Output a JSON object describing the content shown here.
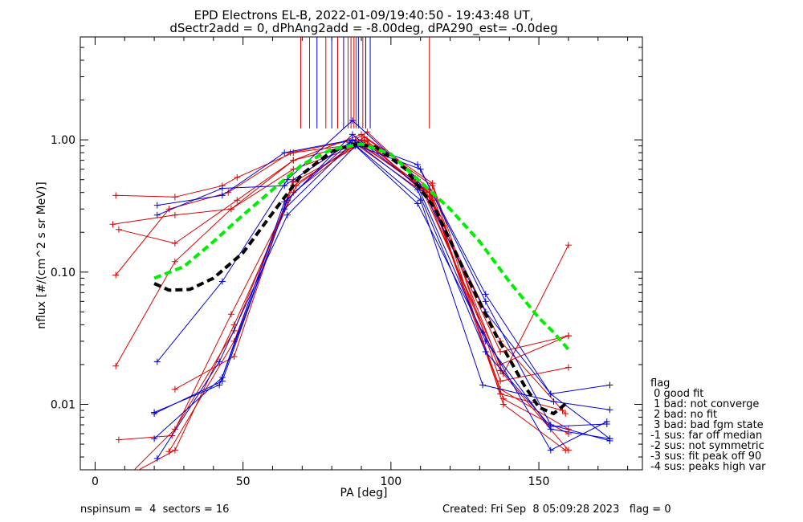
{
  "title_line1": "EPD Electrons EL-B, 2022-01-09/19:40:50 - 19:43:48 UT,",
  "title_line2": "dSectr2add = 0, dPhAng2add = -8.00deg, dPA290_est=  -0.0deg",
  "footer": {
    "left": "nspinsum =  4  sectors = 16",
    "right": "Created: Fri Sep  8 05:09:28 2023   flag = 0"
  },
  "legend": {
    "title": "flag",
    "entries": [
      " 0 good fit",
      " 1 bad: not converge",
      " 2 bad: no fit",
      " 3 bad: bad fgm state",
      "-1 sus: far off median",
      "-2 sus: not symmetric",
      "-3 sus: fit peak off 90",
      "-4 sus: peaks high var"
    ]
  },
  "colors": {
    "red": "#dd0000",
    "blue": "#0000dd",
    "green": "#00ee00",
    "black": "#000000"
  },
  "chart_data": {
    "type": "line",
    "title": "EPD Electrons EL-B, 2022-01-09/19:40:50 - 19:43:48 UT,",
    "xlabel": "PA [deg]",
    "ylabel": "nflux [#/(cm^2 s sr MeV)]",
    "xlim": [
      -5,
      185
    ],
    "ylim": [
      0.0032,
      6.0
    ],
    "yscale": "log",
    "x_ticks": [
      0,
      50,
      100,
      150
    ],
    "y_ticks": [
      {
        "value": 0.01,
        "label": "0.01"
      },
      {
        "value": 0.1,
        "label": "0.10"
      },
      {
        "value": 1.0,
        "label": "1.00"
      }
    ],
    "grid": false,
    "series": [
      {
        "color": "red",
        "x": [
          7,
          27,
          43,
          48,
          67,
          89,
          111,
          137,
          160
        ],
        "y": [
          0.38,
          0.37,
          0.45,
          0.52,
          0.8,
          0.93,
          0.45,
          0.025,
          0.033
        ]
      },
      {
        "color": "red",
        "x": [
          6,
          27,
          46,
          67,
          89,
          111,
          137,
          160
        ],
        "y": [
          0.23,
          0.27,
          0.3,
          0.6,
          0.9,
          0.4,
          0.02,
          0.033
        ]
      },
      {
        "color": "red",
        "x": [
          8,
          27,
          48,
          67,
          89,
          111,
          137,
          160
        ],
        "y": [
          0.21,
          0.165,
          0.35,
          0.7,
          0.95,
          0.43,
          0.018,
          0.0045
        ]
      },
      {
        "color": "red",
        "x": [
          7,
          25,
          45,
          66,
          88,
          114,
          138,
          160
        ],
        "y": [
          0.095,
          0.3,
          0.4,
          0.8,
          1.0,
          0.38,
          0.017,
          0.16
        ]
      },
      {
        "color": "red",
        "x": [
          7,
          27,
          46,
          67,
          90,
          114,
          137,
          160
        ],
        "y": [
          0.0195,
          0.12,
          0.3,
          0.7,
          1.1,
          0.47,
          0.015,
          0.019
        ]
      },
      {
        "color": "red",
        "x": [
          8,
          26,
          46,
          67,
          90,
          113,
          137,
          158
        ],
        "y": [
          0.0054,
          0.0058,
          0.048,
          0.4,
          1.0,
          0.4,
          0.012,
          0.009
        ]
      },
      {
        "color": "red",
        "x": [
          10,
          27,
          47,
          68,
          91,
          114,
          138,
          159
        ],
        "y": [
          0.0028,
          0.0045,
          0.04,
          0.45,
          1.05,
          0.45,
          0.01,
          0.0045
        ]
      },
      {
        "color": "red",
        "x": [
          12,
          27,
          47,
          67,
          91,
          114,
          137,
          160
        ],
        "y": [
          0.003,
          0.0065,
          0.036,
          0.45,
          1.0,
          0.35,
          0.013,
          0.0065
        ]
      },
      {
        "color": "red",
        "x": [
          27,
          47,
          67,
          92,
          113,
          138,
          160
        ],
        "y": [
          0.013,
          0.023,
          0.5,
          1.15,
          0.42,
          0.011,
          0.006
        ]
      },
      {
        "color": "red",
        "x": [
          25,
          47,
          67,
          92,
          113,
          137,
          159
        ],
        "y": [
          0.0044,
          0.03,
          0.48,
          0.98,
          0.37,
          0.03,
          0.0085
        ]
      },
      {
        "color": "blue",
        "x": [
          21,
          43,
          64,
          87,
          109,
          132,
          154,
          174
        ],
        "y": [
          0.32,
          0.38,
          0.8,
          1.0,
          0.65,
          0.068,
          0.012,
          0.0055
        ]
      },
      {
        "color": "blue",
        "x": [
          21,
          43,
          64,
          86,
          110,
          132,
          154,
          174
        ],
        "y": [
          0.27,
          0.43,
          0.45,
          0.95,
          0.6,
          0.06,
          0.007,
          0.0053
        ]
      },
      {
        "color": "blue",
        "x": [
          21,
          43,
          65,
          87,
          109,
          132,
          154,
          174
        ],
        "y": [
          0.021,
          0.085,
          0.5,
          1.4,
          0.5,
          0.05,
          0.012,
          0.014
        ]
      },
      {
        "color": "blue",
        "x": [
          20,
          43,
          65,
          87,
          109,
          132,
          154,
          174
        ],
        "y": [
          0.0085,
          0.015,
          0.35,
          1.1,
          0.45,
          0.03,
          0.0065,
          0.0055
        ]
      },
      {
        "color": "blue",
        "x": [
          20,
          43,
          64,
          87,
          110,
          131,
          155,
          174
        ],
        "y": [
          0.0055,
          0.016,
          0.3,
          0.95,
          0.35,
          0.014,
          0.0105,
          0.0091
        ]
      },
      {
        "color": "blue",
        "x": [
          21,
          42,
          65,
          88,
          109,
          131,
          154,
          173
        ],
        "y": [
          0.0039,
          0.021,
          0.27,
          0.9,
          0.33,
          0.035,
          0.0045,
          0.0074
        ]
      },
      {
        "color": "blue",
        "x": [
          20,
          42,
          64,
          87,
          109,
          132,
          154,
          173
        ],
        "y": [
          0.0087,
          0.014,
          0.34,
          1.0,
          0.42,
          0.025,
          0.0068,
          0.0071
        ]
      },
      {
        "color": "black",
        "style": "dashed",
        "x": [
          20,
          25,
          32,
          40,
          50,
          60,
          70,
          80,
          88,
          95,
          105,
          115,
          125,
          135,
          145,
          150,
          155,
          160
        ],
        "y": [
          0.082,
          0.073,
          0.074,
          0.09,
          0.14,
          0.28,
          0.55,
          0.82,
          0.93,
          0.88,
          0.6,
          0.3,
          0.1,
          0.035,
          0.014,
          0.0095,
          0.0085,
          0.0105
        ]
      },
      {
        "color": "green",
        "style": "dashed",
        "x": [
          20,
          30,
          40,
          50,
          60,
          70,
          80,
          90,
          100,
          110,
          120,
          130,
          140,
          150,
          155,
          160
        ],
        "y": [
          0.09,
          0.11,
          0.17,
          0.27,
          0.42,
          0.65,
          0.85,
          0.93,
          0.78,
          0.48,
          0.3,
          0.17,
          0.085,
          0.045,
          0.035,
          0.026
        ]
      }
    ],
    "vertical_markers": [
      {
        "x": 69.5,
        "color": "red"
      },
      {
        "x": 72.5,
        "color": "red"
      },
      {
        "x": 75.0,
        "color": "blue"
      },
      {
        "x": 78.0,
        "color": "red"
      },
      {
        "x": 80.0,
        "color": "blue"
      },
      {
        "x": 82.0,
        "color": "red"
      },
      {
        "x": 84.0,
        "color": "blue"
      },
      {
        "x": 85.5,
        "color": "red"
      },
      {
        "x": 86.5,
        "color": "red"
      },
      {
        "x": 87.5,
        "color": "red"
      },
      {
        "x": 88.2,
        "color": "red"
      },
      {
        "x": 89.0,
        "color": "blue"
      },
      {
        "x": 90.5,
        "color": "red"
      },
      {
        "x": 91.5,
        "color": "blue"
      },
      {
        "x": 93.0,
        "color": "blue"
      },
      {
        "x": 113.0,
        "color": "red"
      }
    ]
  }
}
